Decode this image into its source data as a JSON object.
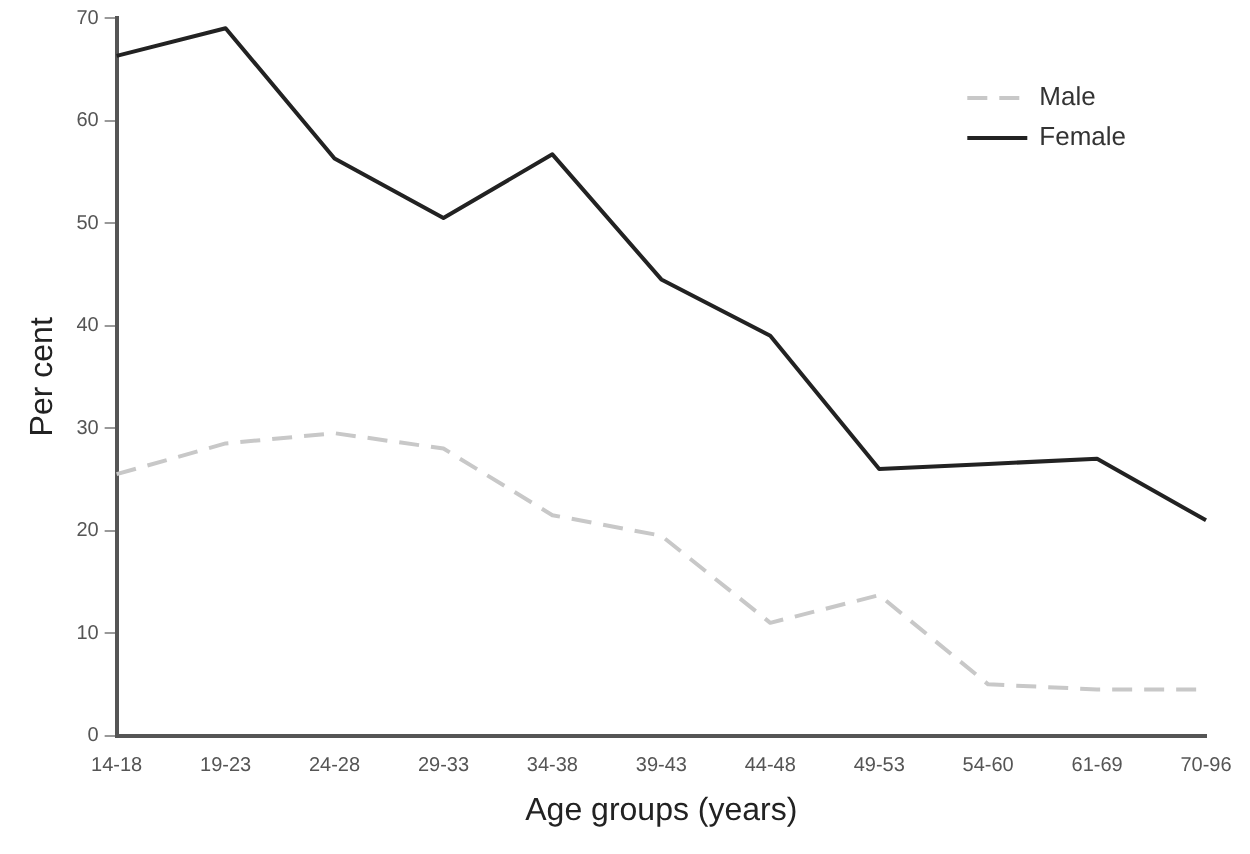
{
  "chart_data": {
    "type": "line",
    "xlabel": "Age groups (years)",
    "ylabel": "Per cent",
    "categories": [
      "14-18",
      "19-23",
      "24-28",
      "29-33",
      "34-38",
      "39-43",
      "44-48",
      "49-53",
      "54-60",
      "61-69",
      "70-96"
    ],
    "series": [
      {
        "name": "Male",
        "color": "#c8c8c8",
        "line_style": "dashed",
        "values": [
          25.5,
          28.5,
          29.5,
          28,
          21.5,
          19.5,
          11,
          13.7,
          5,
          4.5,
          4.5
        ]
      },
      {
        "name": "Female",
        "color": "#222222",
        "line_style": "solid",
        "values": [
          66.3,
          69,
          56.3,
          50.5,
          56.7,
          44.5,
          39,
          26,
          26.5,
          27,
          21
        ]
      }
    ],
    "ylim": [
      0,
      70
    ],
    "yticks": [
      0,
      10,
      20,
      30,
      40,
      50,
      60,
      70
    ],
    "grid": false,
    "legend": "top right",
    "marker": "none"
  }
}
